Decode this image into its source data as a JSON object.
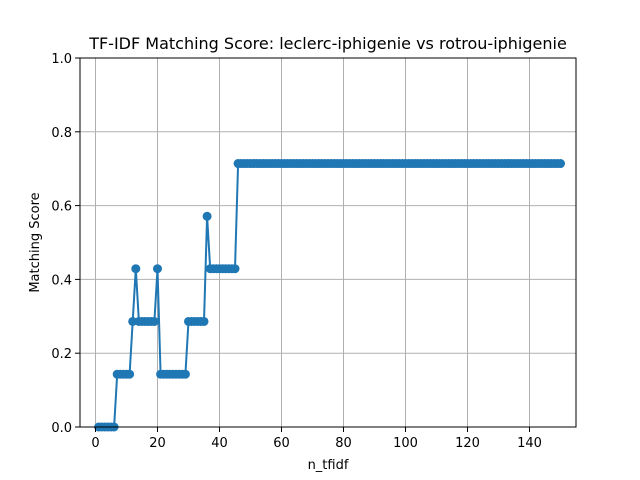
{
  "chart_data": {
    "type": "line",
    "title": "TF-IDF Matching Score: leclerc-iphigenie vs rotrou-iphigenie",
    "xlabel": "n_tfidf",
    "ylabel": "Matching Score",
    "xlim": [
      -5,
      155
    ],
    "ylim": [
      0,
      1.0
    ],
    "xticks": [
      0,
      20,
      40,
      60,
      80,
      100,
      120,
      140
    ],
    "yticks": [
      0.0,
      0.2,
      0.4,
      0.6,
      0.8,
      1.0
    ],
    "xtick_labels": [
      "0",
      "20",
      "40",
      "60",
      "80",
      "100",
      "120",
      "140"
    ],
    "ytick_labels": [
      "0.0",
      "0.2",
      "0.4",
      "0.6",
      "0.8",
      "1.0"
    ],
    "grid": true,
    "color": "#1f77b4",
    "marker": "circle",
    "series": [
      {
        "x": [
          1,
          2,
          3,
          4,
          5,
          6,
          7,
          8,
          9,
          10,
          11,
          12,
          13,
          14,
          15,
          16,
          17,
          18,
          19,
          20,
          21,
          22,
          23,
          24,
          25,
          26,
          27,
          28,
          29,
          30,
          31,
          32,
          33,
          34,
          35,
          36,
          37,
          38,
          39,
          40,
          41,
          42,
          43,
          44,
          45,
          46,
          47,
          48,
          49,
          50,
          51,
          52,
          53,
          54,
          55,
          56,
          57,
          58,
          59,
          60,
          61,
          62,
          63,
          64,
          65,
          66,
          67,
          68,
          69,
          70,
          71,
          72,
          73,
          74,
          75,
          76,
          77,
          78,
          79,
          80,
          81,
          82,
          83,
          84,
          85,
          86,
          87,
          88,
          89,
          90,
          91,
          92,
          93,
          94,
          95,
          96,
          97,
          98,
          99,
          100,
          101,
          102,
          103,
          104,
          105,
          106,
          107,
          108,
          109,
          110,
          111,
          112,
          113,
          114,
          115,
          116,
          117,
          118,
          119,
          120,
          121,
          122,
          123,
          124,
          125,
          126,
          127,
          128,
          129,
          130,
          131,
          132,
          133,
          134,
          135,
          136,
          137,
          138,
          139,
          140,
          141,
          142,
          143,
          144,
          145,
          146,
          147,
          148,
          149,
          150
        ],
        "values": [
          0,
          0,
          0,
          0,
          0,
          0,
          0.143,
          0.143,
          0.143,
          0.143,
          0.143,
          0.286,
          0.429,
          0.286,
          0.286,
          0.286,
          0.286,
          0.286,
          0.286,
          0.429,
          0.143,
          0.143,
          0.143,
          0.143,
          0.143,
          0.143,
          0.143,
          0.143,
          0.143,
          0.286,
          0.286,
          0.286,
          0.286,
          0.286,
          0.286,
          0.571,
          0.429,
          0.429,
          0.429,
          0.429,
          0.429,
          0.429,
          0.429,
          0.429,
          0.429,
          0.714,
          0.714,
          0.714,
          0.714,
          0.714,
          0.714,
          0.714,
          0.714,
          0.714,
          0.714,
          0.714,
          0.714,
          0.714,
          0.714,
          0.714,
          0.714,
          0.714,
          0.714,
          0.714,
          0.714,
          0.714,
          0.714,
          0.714,
          0.714,
          0.714,
          0.714,
          0.714,
          0.714,
          0.714,
          0.714,
          0.714,
          0.714,
          0.714,
          0.714,
          0.714,
          0.714,
          0.714,
          0.714,
          0.714,
          0.714,
          0.714,
          0.714,
          0.714,
          0.714,
          0.714,
          0.714,
          0.714,
          0.714,
          0.714,
          0.714,
          0.714,
          0.714,
          0.714,
          0.714,
          0.714,
          0.714,
          0.714,
          0.714,
          0.714,
          0.714,
          0.714,
          0.714,
          0.714,
          0.714,
          0.714,
          0.714,
          0.714,
          0.714,
          0.714,
          0.714,
          0.714,
          0.714,
          0.714,
          0.714,
          0.714,
          0.714,
          0.714,
          0.714,
          0.714,
          0.714,
          0.714,
          0.714,
          0.714,
          0.714,
          0.714,
          0.714,
          0.714,
          0.714,
          0.714,
          0.714,
          0.714,
          0.714,
          0.714,
          0.714,
          0.714,
          0.714,
          0.714,
          0.714,
          0.714,
          0.714,
          0.714,
          0.714,
          0.714,
          0.714,
          0.714
        ]
      }
    ]
  }
}
